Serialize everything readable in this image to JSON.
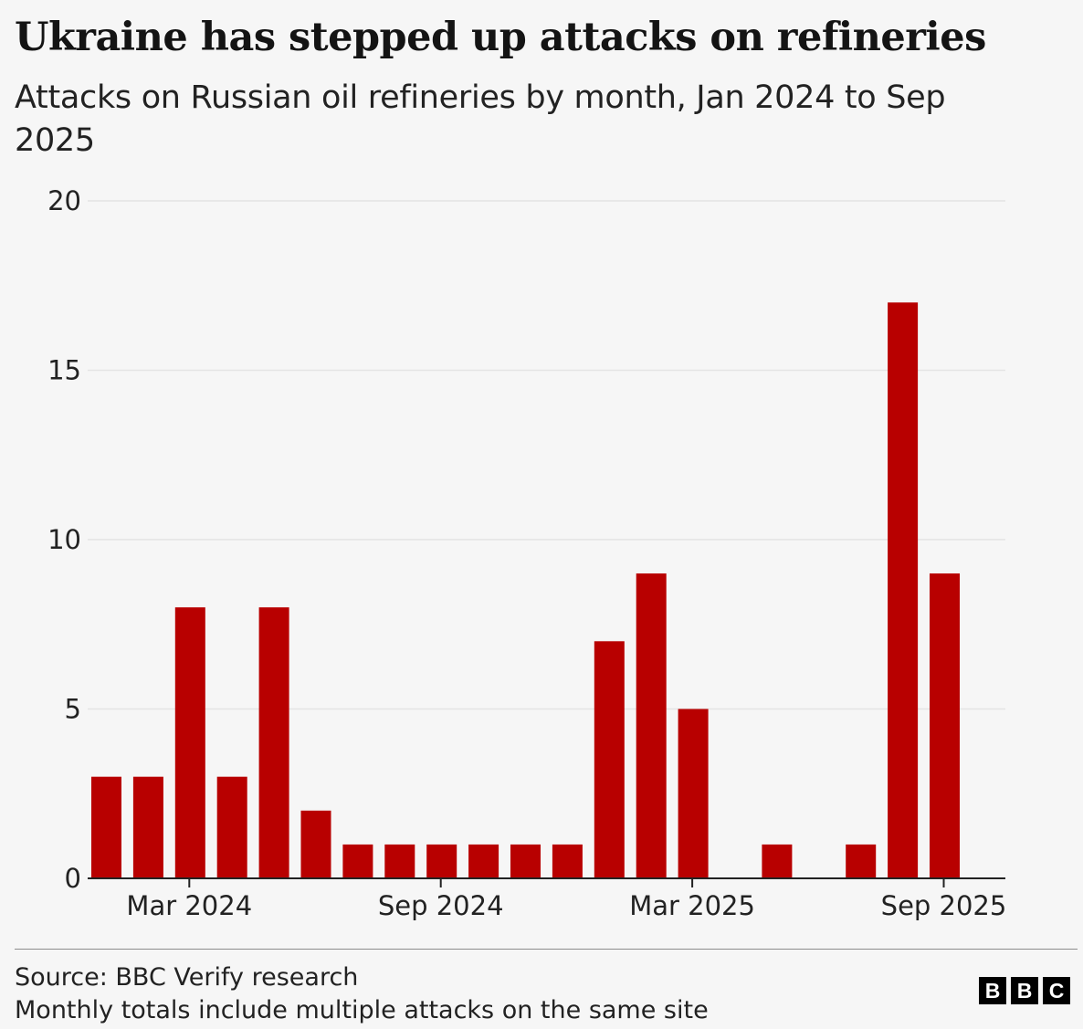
{
  "title": "Ukraine has stepped up attacks on refineries",
  "subtitle": "Attacks on Russian oil refineries by month, Jan 2024 to Sep 2025",
  "colors": {
    "bar": "#b80000",
    "background": "#f6f6f6",
    "gridline": "#e4e4e4",
    "axis": "#222222"
  },
  "chart_data": {
    "type": "bar",
    "categories": [
      "Jan 2024",
      "Feb 2024",
      "Mar 2024",
      "Apr 2024",
      "May 2024",
      "Jun 2024",
      "Jul 2024",
      "Aug 2024",
      "Sep 2024",
      "Oct 2024",
      "Nov 2024",
      "Dec 2024",
      "Jan 2025",
      "Feb 2025",
      "Mar 2025",
      "Apr 2025",
      "May 2025",
      "Jun 2025",
      "Jul 2025",
      "Aug 2025",
      "Sep 2025"
    ],
    "values": [
      3,
      3,
      8,
      3,
      8,
      2,
      1,
      1,
      1,
      1,
      1,
      1,
      7,
      9,
      5,
      0,
      1,
      0,
      1,
      17,
      9
    ],
    "x_ticks": [
      "Mar 2024",
      "Sep 2024",
      "Mar 2025",
      "Sep 2025"
    ],
    "y_ticks": [
      0,
      5,
      10,
      15,
      20
    ],
    "ylim": [
      0,
      20
    ],
    "xlabel": "",
    "ylabel": "",
    "grid": true,
    "legend": "none"
  },
  "footer": {
    "source": "Source: BBC Verify research",
    "note": "Monthly totals include multiple attacks on the same site",
    "logo_letters": [
      "B",
      "B",
      "C"
    ]
  }
}
